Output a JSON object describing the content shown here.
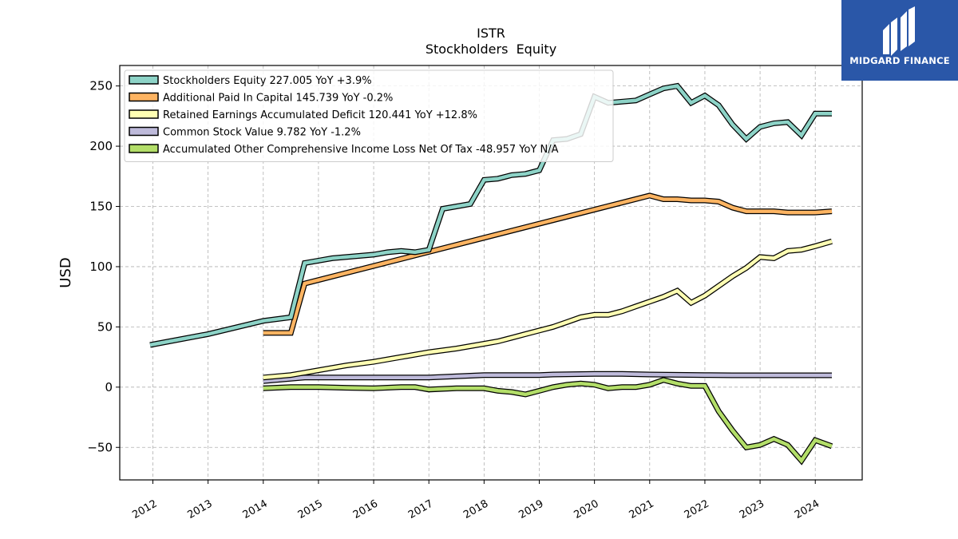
{
  "header": {
    "ticker": "ISTR",
    "subtitle": "Stockholders  Equity"
  },
  "logo": {
    "text": "MIDGARD FINANCE"
  },
  "chart_data": {
    "type": "line",
    "title": "ISTR",
    "subtitle": "Stockholders  Equity",
    "xlabel": "",
    "ylabel": "USD",
    "xlim": [
      2011.4,
      2024.85
    ],
    "ylim": [
      -77,
      267
    ],
    "xticks": [
      2012,
      2013,
      2014,
      2015,
      2016,
      2017,
      2018,
      2019,
      2020,
      2021,
      2022,
      2023,
      2024
    ],
    "xtick_labels": [
      "2012",
      "2013",
      "2014",
      "2015",
      "2016",
      "2017",
      "2018",
      "2019",
      "2020",
      "2021",
      "2022",
      "2023",
      "2024"
    ],
    "yticks": [
      -50,
      0,
      50,
      100,
      150,
      200,
      250
    ],
    "ytick_labels": [
      "−50",
      "0",
      "50",
      "100",
      "150",
      "200",
      "250"
    ],
    "grid": true,
    "legend_position": "top-left",
    "series": [
      {
        "name": "Stockholders Equity  227.005 YoY +3.9%",
        "color": "#8dd3c7",
        "x": [
          2011.95,
          2013.0,
          2014.0,
          2014.5,
          2014.75,
          2015.0,
          2015.25,
          2015.5,
          2015.75,
          2016.0,
          2016.25,
          2016.5,
          2016.75,
          2017.0,
          2017.25,
          2017.5,
          2017.75,
          2018.0,
          2018.25,
          2018.5,
          2018.75,
          2019.0,
          2019.25,
          2019.5,
          2019.75,
          2020.0,
          2020.25,
          2020.5,
          2020.75,
          2021.0,
          2021.25,
          2021.5,
          2021.75,
          2022.0,
          2022.25,
          2022.5,
          2022.75,
          2023.0,
          2023.25,
          2023.5,
          2023.75,
          2024.0,
          2024.3
        ],
        "values": [
          35,
          44,
          55,
          58,
          103,
          105,
          107,
          108,
          109,
          110,
          112,
          113,
          112,
          114,
          148,
          150,
          152,
          172,
          173,
          176,
          177,
          180,
          205,
          206,
          210,
          241,
          236,
          237,
          238,
          243,
          248,
          250,
          236,
          242,
          234,
          218,
          206,
          216,
          219,
          220,
          209,
          227,
          227
        ]
      },
      {
        "name": "Additional Paid In Capital  145.739 YoY -0.2%",
        "color": "#fdb462",
        "x": [
          2014.0,
          2014.5,
          2014.75,
          2021.0,
          2021.25,
          2021.5,
          2021.75,
          2022.0,
          2022.25,
          2022.5,
          2022.75,
          2023.0,
          2023.25,
          2023.5,
          2023.75,
          2024.0,
          2024.3
        ],
        "values": [
          45,
          45,
          86,
          159,
          156,
          156,
          155,
          155,
          154,
          149,
          146,
          146,
          146,
          145,
          145,
          145,
          146
        ]
      },
      {
        "name": "Retained Earnings Accumulated Deficit  120.441 YoY +12.8%",
        "color": "#ffffb3",
        "x": [
          2014.0,
          2014.5,
          2015.0,
          2015.5,
          2016.0,
          2016.5,
          2017.0,
          2017.5,
          2018.0,
          2018.25,
          2018.5,
          2018.75,
          2019.0,
          2019.25,
          2019.5,
          2019.75,
          2020.0,
          2020.25,
          2020.5,
          2020.75,
          2021.0,
          2021.25,
          2021.5,
          2021.75,
          2022.0,
          2022.25,
          2022.5,
          2022.75,
          2023.0,
          2023.25,
          2023.5,
          2023.75,
          2024.0,
          2024.3
        ],
        "values": [
          8,
          10,
          14,
          18,
          21,
          25,
          29,
          32,
          36,
          38,
          41,
          44,
          47,
          50,
          54,
          58,
          60,
          60,
          63,
          67,
          71,
          75,
          80,
          70,
          76,
          84,
          92,
          99,
          108,
          107,
          113,
          114,
          117,
          121
        ]
      },
      {
        "name": "Common Stock Value  9.782 YoY -1.2%",
        "color": "#bebada",
        "x": [
          2014.0,
          2014.75,
          2016.0,
          2017.0,
          2018.0,
          2019.0,
          2019.25,
          2020.0,
          2020.5,
          2021.0,
          2022.0,
          2022.5,
          2023.0,
          2024.3
        ],
        "values": [
          5,
          8,
          8,
          8,
          10,
          10,
          10.5,
          11,
          11,
          10.5,
          10,
          9.8,
          9.8,
          9.8
        ]
      },
      {
        "name": "Accumulated Other Comprehensive Income Loss Net Of Tax  -48.957 YoY N/A",
        "color": "#b3de69",
        "x": [
          2014.0,
          2014.5,
          2015.0,
          2015.5,
          2016.0,
          2016.5,
          2016.75,
          2017.0,
          2017.5,
          2018.0,
          2018.25,
          2018.5,
          2018.75,
          2019.0,
          2019.25,
          2019.5,
          2019.75,
          2020.0,
          2020.25,
          2020.5,
          2020.75,
          2021.0,
          2021.25,
          2021.5,
          2021.75,
          2022.0,
          2022.25,
          2022.5,
          2022.75,
          2023.0,
          2023.25,
          2023.5,
          2023.75,
          2024.0,
          2024.3
        ],
        "values": [
          -1,
          0,
          0,
          -0.5,
          -1,
          0,
          0,
          -2,
          -1,
          -1,
          -3,
          -4,
          -6,
          -3,
          0,
          2,
          3,
          2,
          -1,
          0,
          0,
          2,
          6,
          3,
          1,
          1,
          -20,
          -36,
          -50,
          -48,
          -43,
          -48,
          -61,
          -44,
          -49
        ]
      }
    ]
  }
}
